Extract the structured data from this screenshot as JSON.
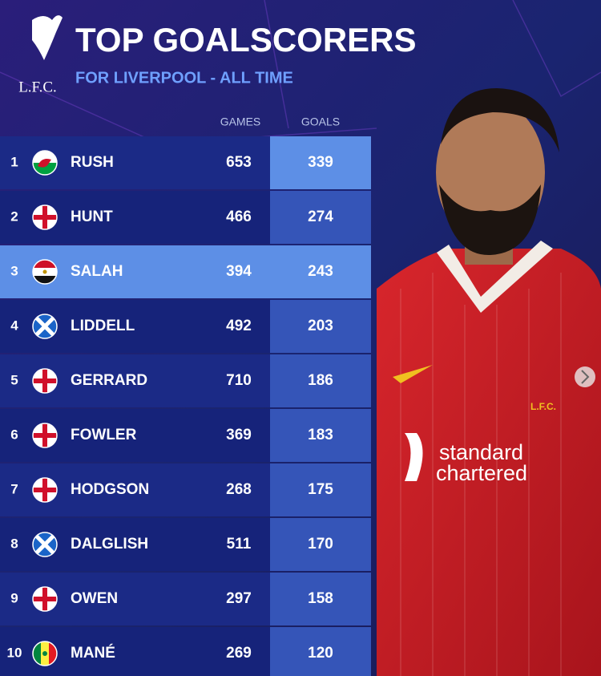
{
  "header": {
    "logo": "L.F.C.",
    "title": "TOP GOALSCORERS",
    "subtitle": "FOR LIVERPOOL - ALL TIME"
  },
  "table": {
    "columns": [
      "GAMES",
      "GOALS"
    ],
    "rows": [
      {
        "rank": 1,
        "name": "RUSH",
        "games": 653,
        "goals": 339
      },
      {
        "rank": 2,
        "name": "HUNT",
        "games": 466,
        "goals": 274
      },
      {
        "rank": 3,
        "name": "SALAH",
        "games": 394,
        "goals": 243
      },
      {
        "rank": 4,
        "name": "LIDDELL",
        "games": 492,
        "goals": 203
      },
      {
        "rank": 5,
        "name": "GERRARD",
        "games": 710,
        "goals": 186
      },
      {
        "rank": 6,
        "name": "FOWLER",
        "games": 369,
        "goals": 183
      },
      {
        "rank": 7,
        "name": "HODGSON",
        "games": 268,
        "goals": 175
      },
      {
        "rank": 8,
        "name": "DALGLISH",
        "games": 511,
        "goals": 170
      },
      {
        "rank": 9,
        "name": "OWEN",
        "games": 297,
        "goals": 158
      },
      {
        "rank": 10,
        "name": "MANÉ",
        "games": 269,
        "goals": 120
      }
    ]
  },
  "photo": {
    "crest": "L.F.C.",
    "sponsor": [
      "standard",
      "chartered"
    ]
  }
}
